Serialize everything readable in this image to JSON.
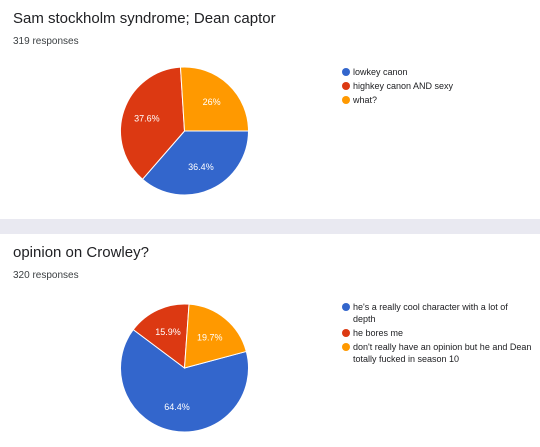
{
  "chart_data": [
    {
      "type": "pie",
      "title": "Sam stockholm syndrome; Dean captor",
      "subtitle": "319 responses",
      "categories": [
        "lowkey canon",
        "highkey canon AND sexy",
        "what?"
      ],
      "values": [
        36.4,
        37.6,
        26.0
      ],
      "labels": [
        "36.4%",
        "37.6%",
        "26%"
      ],
      "colors": [
        "#3366cc",
        "#dc3912",
        "#ff9900"
      ],
      "legend_position": "right"
    },
    {
      "type": "pie",
      "title": "opinion on Crowley?",
      "subtitle": "320 responses",
      "categories": [
        "he's a really cool character with a lot of depth",
        "he bores me",
        "don't really have an opinion but he and Dean totally fucked in season 10"
      ],
      "values": [
        64.4,
        15.9,
        19.7
      ],
      "labels": [
        "64.4%",
        "15.9%",
        "19.7%"
      ],
      "colors": [
        "#3366cc",
        "#dc3912",
        "#ff9900"
      ],
      "legend_position": "right"
    }
  ]
}
